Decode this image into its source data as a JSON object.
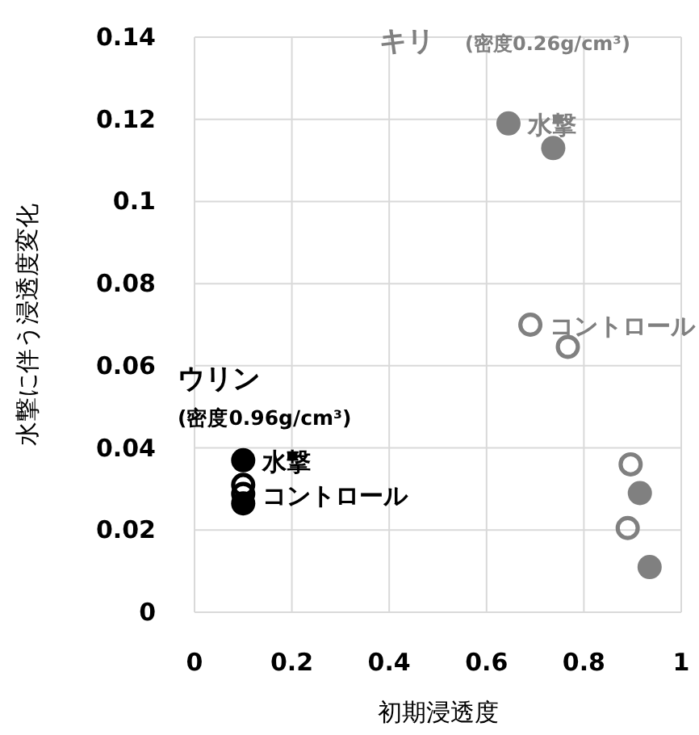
{
  "chart_data": {
    "type": "scatter",
    "xlabel": "初期浸透度",
    "ylabel": "水撃に伴う浸透度変化",
    "xlim": [
      0,
      1
    ],
    "xticks": [
      0,
      0.2,
      0.4,
      0.6,
      0.8,
      1
    ],
    "ylim": [
      0,
      0.14
    ],
    "yticks": [
      0,
      0.02,
      0.04,
      0.06,
      0.08,
      0.1,
      0.12,
      0.14
    ],
    "grid": true,
    "series": [
      {
        "name": "水撃",
        "color": "#808080",
        "marker": "circle",
        "x": [
          0.915,
          0.935,
          0.737,
          0.645
        ],
        "values": [
          0.029,
          0.011,
          0.113,
          0.119
        ]
      },
      {
        "name": "コントロール",
        "color": "#808080",
        "marker": "circle-open",
        "x": [
          0.896,
          0.89,
          0.767,
          0.69
        ],
        "values": [
          0.036,
          0.0205,
          0.0646,
          0.07
        ]
      },
      {
        "name": "水撃",
        "color": "#000000",
        "marker": "circle",
        "x": [
          0.1,
          0.1
        ],
        "values": [
          0.0265,
          0.037
        ]
      },
      {
        "name": "コントロール",
        "color": "#000000",
        "marker": "circle-open",
        "x": [
          0.1,
          0.1
        ],
        "values": [
          0.031,
          0.0288
        ]
      }
    ],
    "annotations": [
      "キリ",
      "(密度0.26g/cm³)",
      "ウリン",
      "(密度0.96g/cm³)"
    ]
  }
}
